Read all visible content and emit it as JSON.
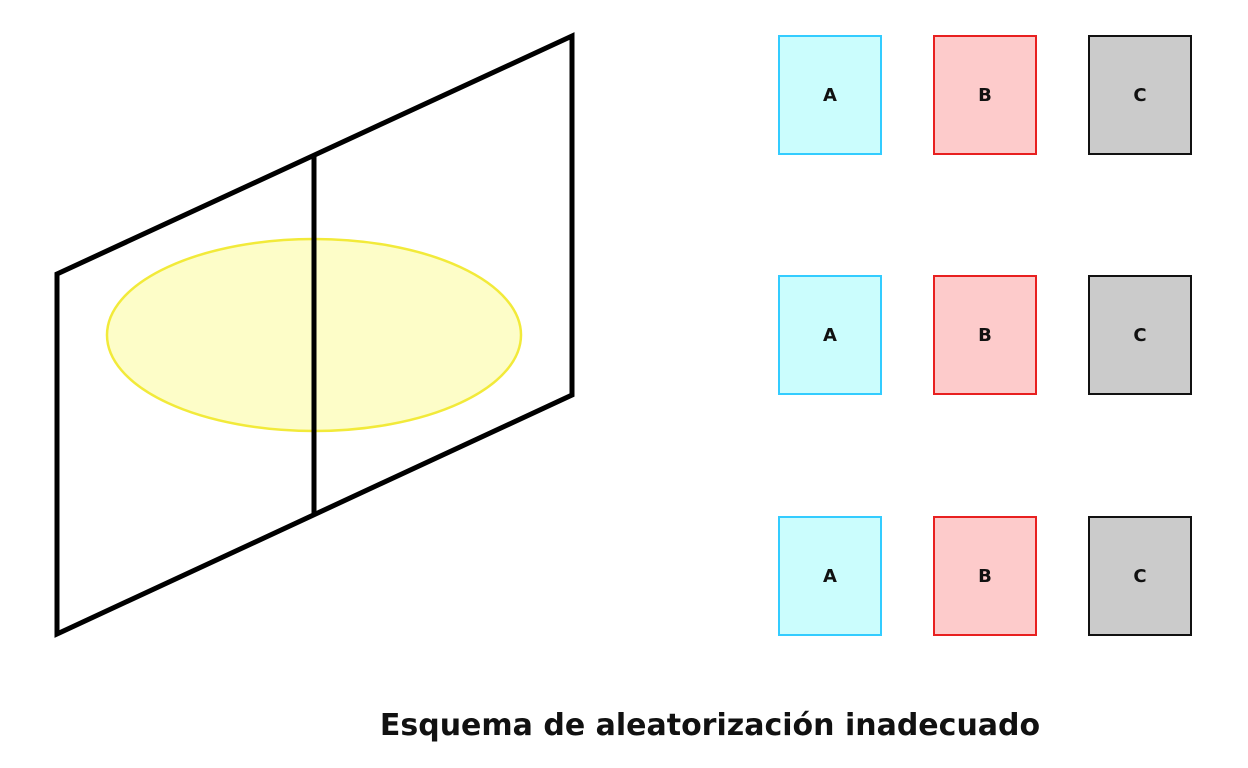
{
  "field": {
    "outline_color": "#000000",
    "zone_fill": "#fdfdc8",
    "zone_stroke": "#f2ea3a"
  },
  "treatments": {
    "A": {
      "label": "A",
      "fill": "#cbfdfd",
      "border": "#33ccff"
    },
    "B": {
      "label": "B",
      "fill": "#fdcbcb",
      "border": "#e82020"
    },
    "C": {
      "label": "C",
      "fill": "#cbcbcb",
      "border": "#111111"
    }
  },
  "rows": [
    {
      "plots": [
        "A",
        "B",
        "C"
      ]
    },
    {
      "plots": [
        "A",
        "B",
        "C"
      ]
    },
    {
      "plots": [
        "A",
        "B",
        "C"
      ]
    }
  ],
  "caption": "Esquema de aleatorización inadecuado"
}
